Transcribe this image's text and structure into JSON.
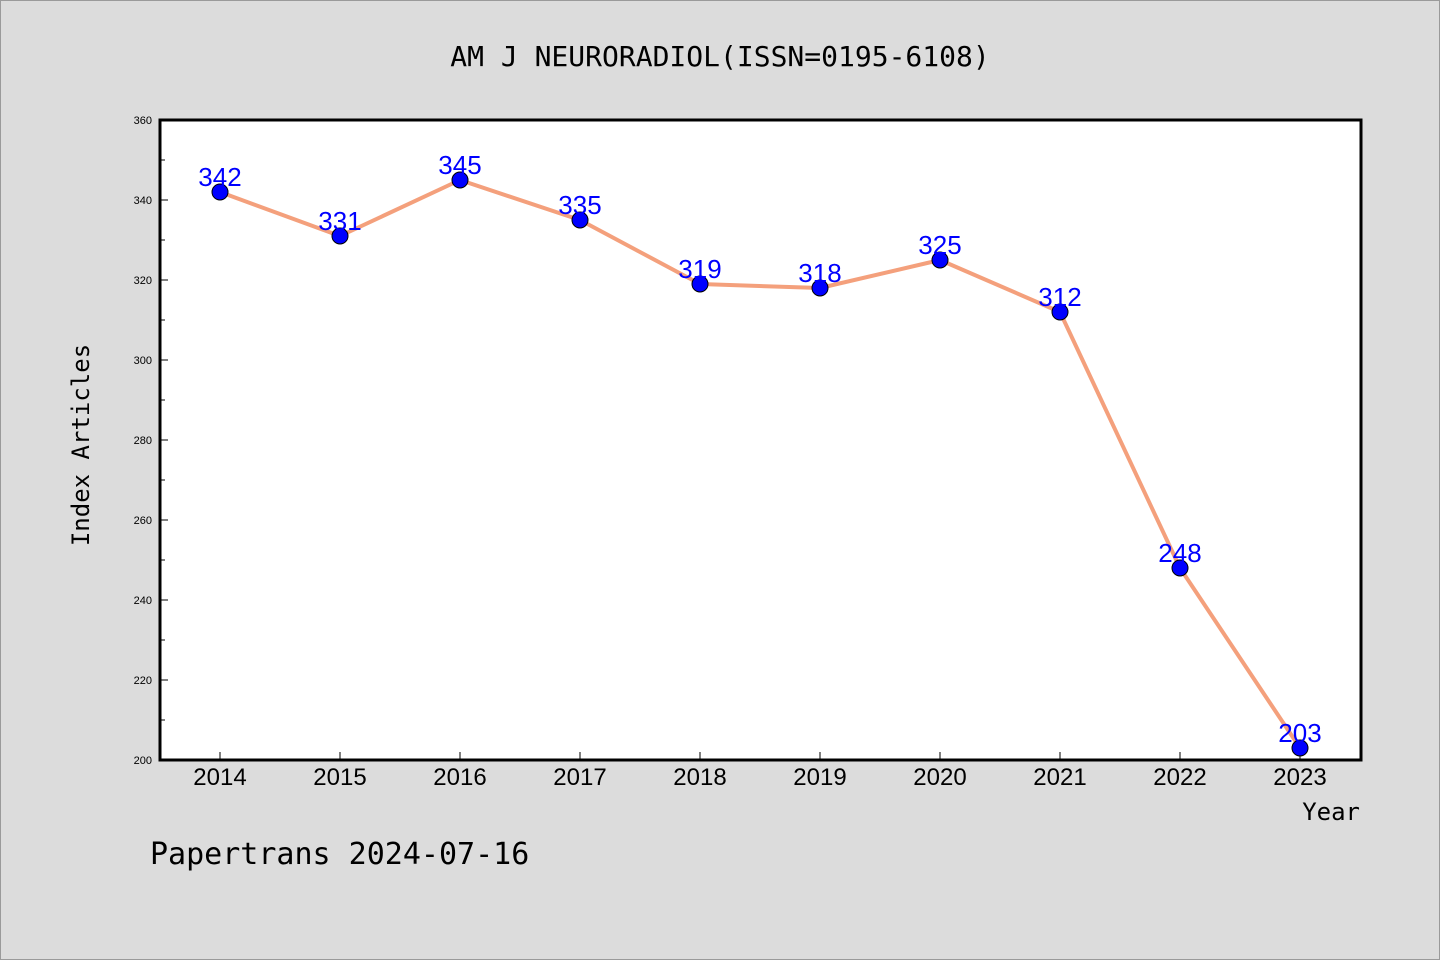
{
  "chart_data": {
    "type": "line",
    "title": "AM J NEURORADIOL(ISSN=0195-6108)",
    "xlabel": "Year",
    "ylabel": "Index Articles",
    "categories": [
      "2014",
      "2015",
      "2016",
      "2017",
      "2018",
      "2019",
      "2020",
      "2021",
      "2022",
      "2023"
    ],
    "values": [
      342,
      331,
      345,
      335,
      319,
      318,
      325,
      312,
      248,
      203
    ],
    "data_labels": [
      "342",
      "331",
      "345",
      "335",
      "319",
      "318",
      "325",
      "312",
      "248",
      "203"
    ],
    "ylim": [
      200,
      360
    ],
    "yticks": [
      "200",
      "220",
      "240",
      "260",
      "280",
      "300",
      "320",
      "340",
      "360"
    ],
    "grid": false,
    "legend": "none",
    "colors": {
      "line": "#f4a07c",
      "marker": "#0000ff",
      "label": "#0000ff",
      "background": "#dcdcdc",
      "plot_area": "#ffffff"
    }
  },
  "footer": {
    "text": "Papertrans 2024-07-16"
  }
}
